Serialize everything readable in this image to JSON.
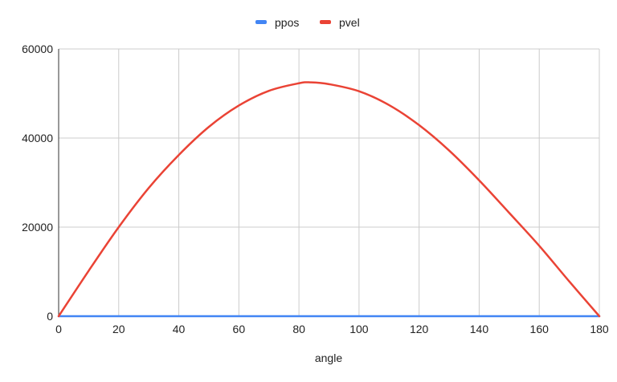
{
  "chart_data": {
    "type": "line",
    "xlabel": "angle",
    "ylabel": "",
    "legend_position": "top",
    "grid": true,
    "xlim": [
      0,
      180
    ],
    "ylim": [
      0,
      60000
    ],
    "xticks": [
      "0",
      "20",
      "40",
      "60",
      "80",
      "100",
      "120",
      "140",
      "160",
      "180"
    ],
    "yticks": [
      "0",
      "20000",
      "40000",
      "60000"
    ],
    "x": [
      0,
      10,
      20,
      30,
      40,
      50,
      60,
      70,
      80,
      84,
      90,
      100,
      110,
      120,
      130,
      140,
      150,
      160,
      170,
      180
    ],
    "series": [
      {
        "name": "ppos",
        "color": "#4285F4",
        "values": [
          0,
          0,
          0,
          0,
          0,
          0,
          0,
          0,
          0,
          0,
          0,
          0,
          0,
          0,
          0,
          0,
          0,
          0,
          0,
          0
        ]
      },
      {
        "name": "pvel",
        "color": "#EA4335",
        "values": [
          0,
          10200,
          20000,
          28800,
          36200,
          42500,
          47300,
          50600,
          52300,
          52500,
          52100,
          50500,
          47400,
          42900,
          37200,
          30500,
          23200,
          15800,
          7800,
          0
        ]
      }
    ]
  }
}
